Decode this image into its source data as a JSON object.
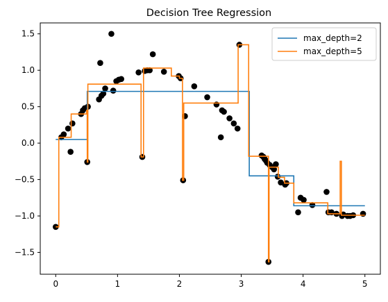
{
  "chart_data": {
    "type": "scatter",
    "title": "Decision Tree Regression",
    "xlabel": "",
    "ylabel": "",
    "xlim": [
      -0.25,
      5.25
    ],
    "ylim": [
      -1.8,
      1.65
    ],
    "xticks": [
      0,
      1,
      2,
      3,
      4,
      5
    ],
    "xtick_labels": [
      "0",
      "1",
      "2",
      "3",
      "4",
      "5"
    ],
    "yticks": [
      -1.5,
      -1.0,
      -0.5,
      0.0,
      0.5,
      1.0,
      1.5
    ],
    "ytick_labels": [
      "−1.5",
      "−1.0",
      "−0.5",
      "0.0",
      "0.5",
      "1.0",
      "1.5"
    ],
    "grid": false,
    "legend_position": "upper-right",
    "scatter": {
      "color": "#000000",
      "x": [
        0.0,
        0.09,
        0.13,
        0.2,
        0.24,
        0.27,
        0.41,
        0.44,
        0.47,
        0.51,
        0.52,
        0.7,
        0.72,
        0.74,
        0.77,
        0.8,
        0.9,
        0.93,
        0.98,
        1.02,
        1.06,
        1.34,
        1.4,
        1.44,
        1.48,
        1.52,
        1.57,
        1.75,
        1.99,
        2.02,
        2.06,
        2.09,
        2.24,
        2.45,
        2.6,
        2.67,
        2.69,
        2.72,
        2.81,
        2.88,
        2.94,
        2.97,
        3.33,
        3.36,
        3.38,
        3.4,
        3.42,
        3.44,
        3.46,
        3.5,
        3.53,
        3.56,
        3.59,
        3.64,
        3.71,
        3.73,
        3.92,
        3.96,
        4.01,
        4.15,
        4.38,
        4.41,
        4.46,
        4.54,
        4.63,
        4.65,
        4.72,
        4.76,
        4.81,
        4.97
      ],
      "y": [
        -1.15,
        0.08,
        0.12,
        0.2,
        -0.12,
        0.27,
        0.4,
        0.45,
        0.48,
        -0.26,
        0.5,
        0.6,
        1.1,
        0.65,
        0.68,
        0.75,
        1.5,
        0.72,
        0.85,
        0.87,
        0.88,
        0.97,
        -0.19,
        0.99,
        1.0,
        1.0,
        1.22,
        0.98,
        0.92,
        0.89,
        -0.51,
        0.37,
        0.78,
        0.63,
        0.53,
        0.08,
        0.45,
        0.43,
        0.34,
        0.27,
        0.2,
        1.35,
        -0.17,
        -0.19,
        -0.22,
        -0.24,
        -0.27,
        -1.63,
        -0.3,
        -0.33,
        -0.36,
        -0.29,
        -0.46,
        -0.54,
        -0.57,
        -0.55,
        -0.95,
        -0.75,
        -0.78,
        -0.85,
        -0.67,
        -0.95,
        -0.95,
        -0.97,
        -1.0,
        -0.98,
        -1.0,
        -1.0,
        -0.99,
        -0.97
      ]
    },
    "series": [
      {
        "name": "max_depth=2",
        "color": "#1f77b4",
        "step": "post",
        "x": [
          0.0,
          0.51,
          3.13,
          3.85,
          5.0
        ],
        "y": [
          0.05,
          0.71,
          -0.45,
          -0.86,
          -0.86
        ]
      },
      {
        "name": "max_depth=5",
        "color": "#ff7f0e",
        "step": "post",
        "x": [
          0.0,
          0.05,
          0.25,
          0.5,
          0.51,
          0.52,
          1.37,
          1.38,
          1.42,
          1.87,
          2.0,
          2.05,
          2.07,
          2.1,
          2.95,
          3.12,
          3.44,
          3.45,
          3.47,
          3.6,
          3.7,
          3.85,
          4.4,
          4.6,
          4.62,
          4.65,
          5.0
        ],
        "y": [
          -1.15,
          0.08,
          0.4,
          0.45,
          -0.26,
          0.81,
          0.81,
          -0.19,
          1.03,
          0.92,
          0.89,
          -0.51,
          0.55,
          0.55,
          1.35,
          -0.18,
          -1.63,
          -0.33,
          -0.33,
          -0.47,
          -0.55,
          -0.82,
          -0.97,
          -0.25,
          -0.99,
          -0.99,
          -0.99
        ]
      }
    ]
  }
}
